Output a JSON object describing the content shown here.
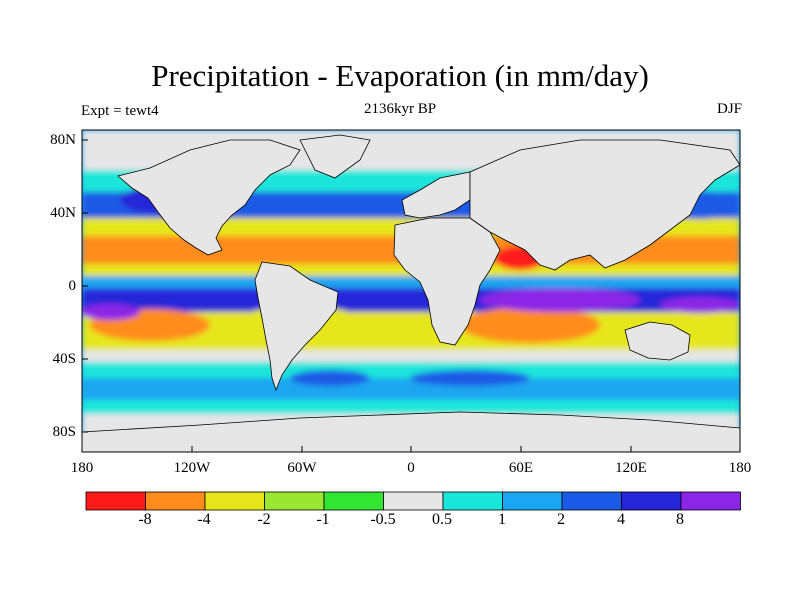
{
  "title": "Precipitation - Evaporation (in mm/day)",
  "subtitle_center": "2136kyr BP",
  "subtitle_left": "Expt = tewt4",
  "subtitle_right": "DJF",
  "lat_labels": [
    "80N",
    "40N",
    "0",
    "40S",
    "80S"
  ],
  "lon_labels": [
    "180",
    "120W",
    "60W",
    "0",
    "60E",
    "120E",
    "180"
  ],
  "colors": {
    "land": "#e6e6e6",
    "c1": "#ff1a1a",
    "c2": "#ff8c1a",
    "c3": "#e6e61a",
    "c4": "#99e633",
    "c5": "#33e633",
    "c6": "#e6e6e6",
    "c7": "#1ae6d9",
    "c8": "#1aa6f0",
    "c9": "#1a5ae6",
    "c10": "#2626d9",
    "c11": "#8c26e6"
  },
  "colorbar": {
    "colors": [
      "#ff1a1a",
      "#ff8c1a",
      "#e6e61a",
      "#99e633",
      "#33e633",
      "#e6e6e6",
      "#1ae6d9",
      "#1aa6f0",
      "#1a5ae6",
      "#2626d9",
      "#8c26e6"
    ],
    "labels": [
      "-8",
      "-4",
      "-2",
      "-1",
      "-0.5",
      "0.5",
      "1",
      "2",
      "4",
      "8"
    ]
  }
}
